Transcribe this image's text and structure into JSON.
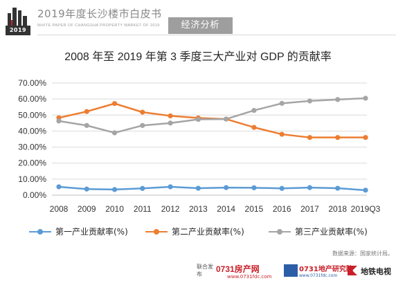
{
  "header": {
    "logo_text": "2019",
    "book_title": "2019年度长沙楼市白皮书",
    "book_subtitle": "WHITE PAPER OF CHANGSHA PROPERTY MARKET OF 2019",
    "section_tag": "经济分析"
  },
  "chart_data": {
    "type": "line",
    "title": "2008 年至 2019 年第 3 季度三大产业对 GDP 的贡献率",
    "xlabel": "",
    "ylabel": "",
    "categories": [
      "2008",
      "2009",
      "2010",
      "2011",
      "2012",
      "2013",
      "2014",
      "2015",
      "2016",
      "2017",
      "2018",
      "2019Q3"
    ],
    "y_ticks": [
      "0.00%",
      "10.00%",
      "20.00%",
      "30.00%",
      "40.00%",
      "50.00%",
      "60.00%",
      "70.00%"
    ],
    "ylim": [
      0,
      70
    ],
    "grid": true,
    "legend_position": "bottom",
    "series": [
      {
        "name": "第一产业贡献率(%)",
        "color": "#5b9bd5",
        "values": [
          5.2,
          3.8,
          3.5,
          4.2,
          5.2,
          4.3,
          4.7,
          4.6,
          4.2,
          4.7,
          4.3,
          3.1
        ]
      },
      {
        "name": "第二产业贡献率(%)",
        "color": "#ed7d31",
        "values": [
          48.3,
          52.2,
          57.2,
          51.8,
          49.5,
          48.2,
          47.5,
          42.3,
          38.0,
          36.0,
          36.0,
          36.0
        ]
      },
      {
        "name": "第三产业贡献率(%)",
        "color": "#a5a5a5",
        "values": [
          46.3,
          43.5,
          38.9,
          43.5,
          45.0,
          47.3,
          47.5,
          52.9,
          57.3,
          58.8,
          59.7,
          60.5
        ]
      }
    ]
  },
  "source_note": "数据来源：国家统计局。",
  "footer": {
    "joint_label": "联合发布",
    "brand1_name": "0731房产网",
    "brand1_url": "www.0731fdc.com",
    "brand2_name": "0731地产研究院",
    "brand2_sub": "www.0731fdc.com",
    "brand3_name": "地铁电视"
  }
}
